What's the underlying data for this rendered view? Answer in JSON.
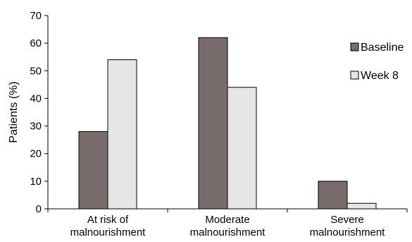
{
  "chart_data": {
    "type": "bar",
    "categories": [
      [
        "At risk of",
        "malnourishment"
      ],
      [
        "Moderate",
        "malnourishment"
      ],
      [
        "Severe",
        "malnourishment"
      ]
    ],
    "series": [
      {
        "name": "Baseline",
        "values": [
          28,
          62,
          10
        ],
        "color": "#786b6b"
      },
      {
        "name": "Week 8",
        "values": [
          54,
          44,
          2
        ],
        "color": "#e6e6e6"
      }
    ],
    "ylabel": "Patients (%)",
    "ylim": [
      0,
      70
    ],
    "yticks": [
      0,
      10,
      20,
      30,
      40,
      50,
      60,
      70
    ],
    "grid": false,
    "legend": "right"
  }
}
